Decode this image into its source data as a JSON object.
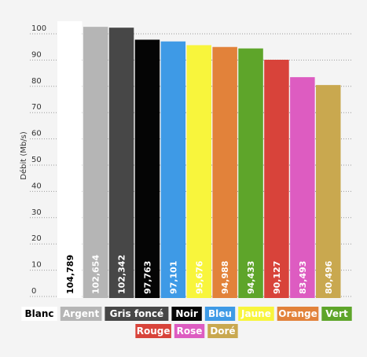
{
  "chart_data": {
    "type": "bar",
    "ylabel": "Débit (Mb/s)",
    "ylim": [
      0,
      100
    ],
    "yticks": [
      0,
      10,
      20,
      30,
      40,
      50,
      60,
      70,
      80,
      90,
      100
    ],
    "grid": "dotted horizontal",
    "legend_position": "bottom",
    "categories": [
      "Blanc",
      "Argent",
      "Gris foncé",
      "Noir",
      "Bleu",
      "Jaune",
      "Orange",
      "Vert",
      "Rouge",
      "Rose",
      "Doré"
    ],
    "values": [
      104.789,
      102.654,
      102.342,
      97.763,
      97.101,
      95.676,
      94.988,
      94.433,
      90.127,
      83.493,
      80.496
    ],
    "value_labels": [
      "104,789",
      "102,654",
      "102,342",
      "97,763",
      "97,101",
      "95,676",
      "94,988",
      "94,433",
      "90,127",
      "83,493",
      "80,496"
    ],
    "colors": [
      "#ffffff",
      "#b5b5b5",
      "#474747",
      "#050505",
      "#3e9ae6",
      "#f8f53c",
      "#e2823a",
      "#5ea52a",
      "#d8433a",
      "#dd5cc1",
      "#c9a84f"
    ],
    "label_colors": [
      "#000000",
      "#ffffff",
      "#ffffff",
      "#ffffff",
      "#ffffff",
      "#ffffff",
      "#ffffff",
      "#ffffff",
      "#ffffff",
      "#ffffff",
      "#ffffff"
    ]
  }
}
